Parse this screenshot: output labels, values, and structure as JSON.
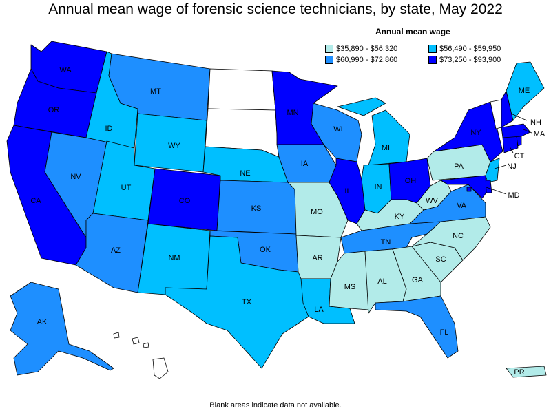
{
  "title": "Annual mean wage of forensic science technicians, by state, May 2022",
  "legend": {
    "title": "Annual mean wage",
    "bins": [
      {
        "label": "$35,890 - $56,320",
        "color": "#b2ebe9"
      },
      {
        "label": "$56,490 - $59,950",
        "color": "#00bfff"
      },
      {
        "label": "$60,990 - $72,860",
        "color": "#1e8fff"
      },
      {
        "label": "$73,250 - $93,900",
        "color": "#0000ff"
      }
    ]
  },
  "no_data_color": "#ffffff",
  "footnote": "Blank areas indicate data not available.",
  "states": [
    {
      "code": "WA",
      "bin": 3
    },
    {
      "code": "OR",
      "bin": 3
    },
    {
      "code": "CA",
      "bin": 3
    },
    {
      "code": "NV",
      "bin": 2
    },
    {
      "code": "ID",
      "bin": 1
    },
    {
      "code": "MT",
      "bin": 2
    },
    {
      "code": "WY",
      "bin": 1
    },
    {
      "code": "UT",
      "bin": 1
    },
    {
      "code": "AZ",
      "bin": 2
    },
    {
      "code": "CO",
      "bin": 3
    },
    {
      "code": "NM",
      "bin": 1
    },
    {
      "code": "ND",
      "bin": null
    },
    {
      "code": "SD",
      "bin": null
    },
    {
      "code": "NE",
      "bin": 1
    },
    {
      "code": "KS",
      "bin": 2
    },
    {
      "code": "OK",
      "bin": 2
    },
    {
      "code": "TX",
      "bin": 1
    },
    {
      "code": "MN",
      "bin": 3
    },
    {
      "code": "IA",
      "bin": 2
    },
    {
      "code": "MO",
      "bin": 0
    },
    {
      "code": "AR",
      "bin": 0
    },
    {
      "code": "LA",
      "bin": 1
    },
    {
      "code": "WI",
      "bin": 2
    },
    {
      "code": "IL",
      "bin": 3
    },
    {
      "code": "MI",
      "bin": 1
    },
    {
      "code": "IN",
      "bin": 1
    },
    {
      "code": "OH",
      "bin": 3
    },
    {
      "code": "KY",
      "bin": 0
    },
    {
      "code": "TN",
      "bin": 2
    },
    {
      "code": "MS",
      "bin": 0
    },
    {
      "code": "AL",
      "bin": 0
    },
    {
      "code": "GA",
      "bin": 0
    },
    {
      "code": "FL",
      "bin": 2
    },
    {
      "code": "SC",
      "bin": 0
    },
    {
      "code": "NC",
      "bin": 0
    },
    {
      "code": "VA",
      "bin": 2
    },
    {
      "code": "WV",
      "bin": 0
    },
    {
      "code": "PA",
      "bin": 0
    },
    {
      "code": "NY",
      "bin": 3
    },
    {
      "code": "VT",
      "bin": null
    },
    {
      "code": "NH",
      "bin": 3
    },
    {
      "code": "ME",
      "bin": 1
    },
    {
      "code": "MA",
      "bin": 3
    },
    {
      "code": "RI",
      "bin": 3
    },
    {
      "code": "CT",
      "bin": 3
    },
    {
      "code": "NJ",
      "bin": 1
    },
    {
      "code": "DE",
      "bin": 3
    },
    {
      "code": "MD",
      "bin": 3
    },
    {
      "code": "DC",
      "bin": 3
    },
    {
      "code": "AK",
      "bin": 2
    },
    {
      "code": "HI",
      "bin": null
    },
    {
      "code": "PR",
      "bin": 0
    }
  ]
}
